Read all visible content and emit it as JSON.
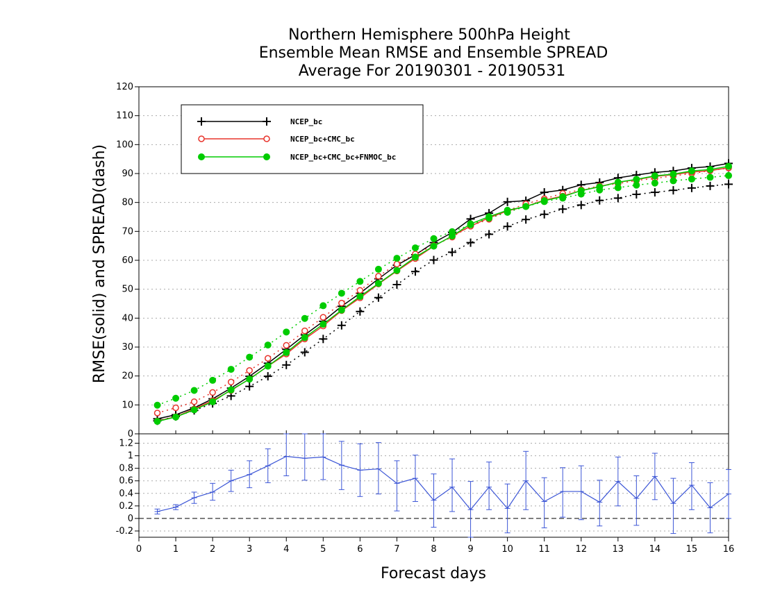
{
  "chart_data": {
    "type": "line",
    "title_lines": [
      "Northern Hemisphere 500hPa Height",
      "Ensemble Mean RMSE and Ensemble SPREAD",
      "Average For 20190301 - 20190531"
    ],
    "xlabel": "Forecast days",
    "ylabel": "RMSE(solid) and SPREAD(dash)",
    "xlim": [
      0,
      16
    ],
    "x_ticks": [
      0,
      1,
      2,
      3,
      4,
      5,
      6,
      7,
      8,
      9,
      10,
      11,
      12,
      13,
      14,
      15,
      16
    ],
    "top_panel": {
      "ylim": [
        0,
        120
      ],
      "y_ticks": [
        0,
        10,
        20,
        30,
        40,
        50,
        60,
        70,
        80,
        90,
        100,
        110,
        120
      ],
      "grid": true,
      "legend_position": "top-left",
      "x": [
        0.5,
        1.0,
        1.5,
        2.0,
        2.5,
        3.0,
        3.5,
        4.0,
        4.5,
        5.0,
        5.5,
        6.0,
        6.5,
        7.0,
        7.5,
        8.0,
        8.5,
        9.0,
        9.5,
        10.0,
        10.5,
        11.0,
        11.5,
        12.0,
        12.5,
        13.0,
        13.5,
        14.0,
        14.5,
        15.0,
        15.5,
        16.0
      ],
      "series": [
        {
          "name": "NCEP_bc",
          "color": "#000000",
          "marker": "plus",
          "rmse": [
            5.2,
            6.6,
            9.0,
            12.1,
            15.8,
            19.9,
            24.4,
            29.2,
            34.2,
            38.9,
            44.1,
            48.6,
            53.6,
            58.3,
            61.9,
            66.1,
            69.6,
            74.3,
            76.3,
            80.2,
            80.6,
            83.5,
            84.3,
            86.1,
            86.9,
            88.5,
            89.5,
            90.4,
            90.9,
            91.9,
            92.4,
            93.5
          ],
          "spread": [
            4.5,
            6.0,
            8.1,
            10.5,
            13.1,
            16.4,
            19.9,
            23.8,
            28.2,
            32.8,
            37.5,
            42.3,
            47.1,
            51.6,
            56.1,
            60.1,
            62.8,
            66.1,
            69.0,
            71.7,
            74.1,
            75.9,
            77.7,
            79.1,
            80.7,
            81.5,
            82.8,
            83.5,
            84.2,
            85.0,
            85.7,
            86.3
          ]
        },
        {
          "name": "NCEP_bc+CMC_bc",
          "color": "#e8332b",
          "marker": "open-circle",
          "rmse": [
            4.4,
            5.9,
            8.6,
            11.5,
            15.0,
            19.0,
            23.4,
            27.6,
            32.8,
            37.3,
            42.6,
            47.0,
            51.8,
            56.3,
            60.6,
            64.9,
            68.4,
            71.8,
            74.7,
            77.1,
            78.6,
            80.8,
            82.2,
            84.1,
            85.5,
            87.0,
            87.9,
            89.0,
            89.6,
            90.5,
            91.0,
            92.0
          ],
          "spread": [
            7.2,
            9.0,
            11.1,
            14.3,
            17.9,
            21.9,
            26.1,
            30.6,
            35.6,
            40.3,
            45.2,
            49.6,
            54.5,
            58.7,
            62.2,
            65.1,
            68.0,
            71.9,
            74.2,
            77.2,
            79.5,
            81.3,
            83.1,
            84.4,
            85.7,
            86.5,
            87.6,
            88.3,
            89.2,
            90.0,
            91.0,
            91.9
          ]
        },
        {
          "name": "NCEP_bc+CMC_bc+FNMOC_bc",
          "color": "#00cc00",
          "marker": "filled-circle",
          "rmse": [
            4.3,
            5.8,
            8.3,
            11.1,
            15.2,
            18.9,
            23.4,
            28.1,
            33.3,
            37.9,
            42.8,
            47.5,
            52.0,
            56.5,
            61.1,
            64.9,
            68.4,
            72.6,
            75.1,
            77.3,
            78.6,
            80.6,
            82.0,
            84.1,
            85.4,
            87.0,
            88.0,
            89.2,
            89.8,
            90.9,
            91.4,
            92.5
          ],
          "spread": [
            9.9,
            12.3,
            15.0,
            18.5,
            22.3,
            26.5,
            30.7,
            35.2,
            39.9,
            44.3,
            48.6,
            52.7,
            56.9,
            60.7,
            64.3,
            67.5,
            69.9,
            72.3,
            74.6,
            76.6,
            78.6,
            80.3,
            81.5,
            82.9,
            84.3,
            85.1,
            86.0,
            86.7,
            87.5,
            88.1,
            88.7,
            89.3
          ]
        }
      ]
    },
    "bottom_panel": {
      "ylim": [
        -0.3,
        1.35
      ],
      "y_ticks": [
        -0.2,
        0,
        0.2,
        0.4,
        0.6,
        0.8,
        1,
        1.2
      ],
      "y_tick_labels": [
        "-0.2",
        "0",
        "0.2",
        "0.4",
        "0.6",
        "0.8",
        "1",
        "1.2"
      ],
      "zero_line": "dashed",
      "color": "#3b55d6",
      "x": [
        0.5,
        1.0,
        1.5,
        2.0,
        2.5,
        3.0,
        3.5,
        4.0,
        4.5,
        5.0,
        5.5,
        6.0,
        6.5,
        7.0,
        7.5,
        8.0,
        8.5,
        9.0,
        9.5,
        10.0,
        10.5,
        11.0,
        11.5,
        12.0,
        12.5,
        13.0,
        13.5,
        14.0,
        14.5,
        15.0,
        15.5,
        16.0
      ],
      "values": [
        0.11,
        0.18,
        0.33,
        0.42,
        0.6,
        0.7,
        0.84,
        0.99,
        0.96,
        0.98,
        0.85,
        0.77,
        0.79,
        0.56,
        0.64,
        0.29,
        0.5,
        0.14,
        0.5,
        0.16,
        0.6,
        0.27,
        0.43,
        0.43,
        0.26,
        0.59,
        0.32,
        0.67,
        0.24,
        0.53,
        0.17,
        0.39
      ],
      "error_low": [
        0.07,
        0.14,
        0.24,
        0.29,
        0.43,
        0.49,
        0.57,
        0.68,
        0.61,
        0.62,
        0.46,
        0.35,
        0.39,
        0.12,
        0.27,
        -0.14,
        0.11,
        -0.3,
        0.14,
        -0.23,
        0.14,
        -0.15,
        0.02,
        -0.02,
        -0.12,
        0.2,
        -0.11,
        0.3,
        -0.24,
        0.14,
        -0.23,
        0.0
      ],
      "error_high": [
        0.15,
        0.22,
        0.42,
        0.56,
        0.77,
        0.92,
        1.11,
        1.35,
        1.35,
        1.35,
        1.23,
        1.19,
        1.21,
        0.92,
        1.01,
        0.71,
        0.95,
        0.59,
        0.9,
        0.55,
        1.07,
        0.65,
        0.81,
        0.84,
        0.61,
        0.98,
        0.68,
        1.04,
        0.64,
        0.89,
        0.57,
        0.78
      ]
    }
  }
}
